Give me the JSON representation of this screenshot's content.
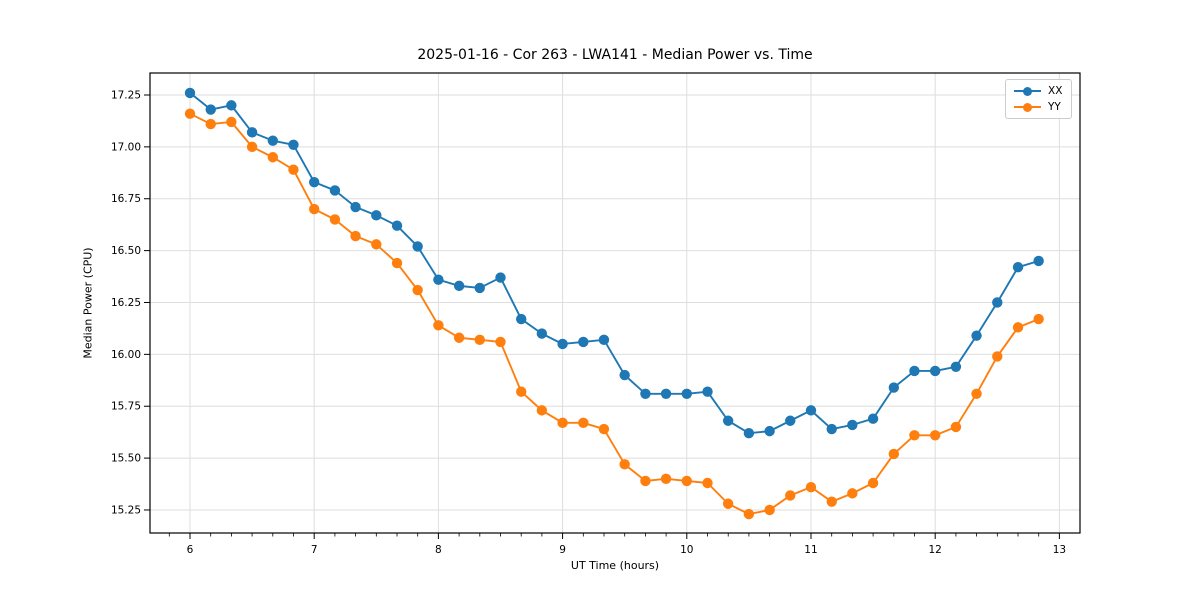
{
  "chart_data": {
    "type": "line",
    "title": "2025-01-16 - Cor 263 - LWA141 - Median Power vs. Time",
    "xlabel": "UT Time (hours)",
    "ylabel": "Median Power (CPU)",
    "xlim": [
      5.678,
      13.166
    ],
    "ylim": [
      15.139,
      17.356
    ],
    "x_major_ticks": [
      6,
      7,
      8,
      9,
      10,
      11,
      12,
      13
    ],
    "x_minor_step": 0.16667,
    "y_major_ticks": [
      15.25,
      15.5,
      15.75,
      16.0,
      16.25,
      16.5,
      16.75,
      17.0,
      17.25
    ],
    "grid": true,
    "legend_position": "upper right",
    "x": [
      6.0,
      6.167,
      6.333,
      6.5,
      6.667,
      6.833,
      7.0,
      7.167,
      7.333,
      7.5,
      7.667,
      7.833,
      8.0,
      8.167,
      8.333,
      8.5,
      8.667,
      8.833,
      9.0,
      9.167,
      9.333,
      9.5,
      9.667,
      9.833,
      10.0,
      10.167,
      10.333,
      10.5,
      10.667,
      10.833,
      11.0,
      11.167,
      11.333,
      11.5,
      11.667,
      11.833,
      12.0,
      12.167,
      12.333,
      12.5,
      12.667,
      12.833
    ],
    "series": [
      {
        "name": "XX",
        "color": "#1f77b4",
        "values": [
          17.26,
          17.18,
          17.2,
          17.07,
          17.03,
          17.01,
          16.83,
          16.79,
          16.71,
          16.67,
          16.62,
          16.52,
          16.36,
          16.33,
          16.32,
          16.37,
          16.17,
          16.1,
          16.05,
          16.06,
          16.07,
          15.9,
          15.81,
          15.81,
          15.81,
          15.82,
          15.68,
          15.62,
          15.63,
          15.68,
          15.73,
          15.64,
          15.66,
          15.69,
          15.84,
          15.92,
          15.92,
          15.94,
          16.09,
          16.25,
          16.42,
          16.45
        ]
      },
      {
        "name": "YY",
        "color": "#ff7f0e",
        "values": [
          17.16,
          17.11,
          17.12,
          17.0,
          16.95,
          16.89,
          16.7,
          16.65,
          16.57,
          16.53,
          16.44,
          16.31,
          16.14,
          16.08,
          16.07,
          16.06,
          15.82,
          15.73,
          15.67,
          15.67,
          15.64,
          15.47,
          15.39,
          15.4,
          15.39,
          15.38,
          15.28,
          15.23,
          15.25,
          15.32,
          15.36,
          15.29,
          15.33,
          15.38,
          15.52,
          15.61,
          15.61,
          15.65,
          15.81,
          15.99,
          16.13,
          16.17
        ]
      }
    ],
    "style": {
      "grid_color": "#dedede",
      "spine_color": "#000000",
      "tick_color": "#000000",
      "background": "#ffffff"
    }
  }
}
